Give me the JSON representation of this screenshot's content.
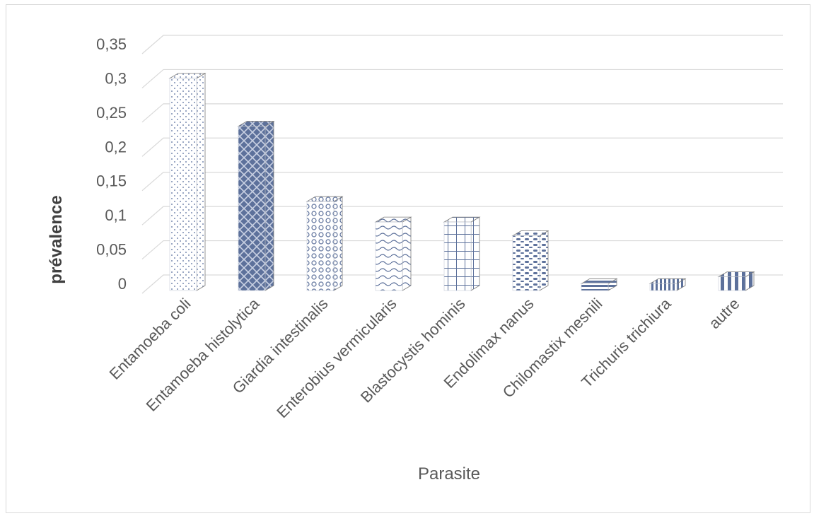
{
  "chart_data": {
    "type": "bar",
    "style": "3d-column",
    "xlabel": "Parasite",
    "ylabel": "prévalence",
    "categories": [
      "Entamoeba coli",
      "Entamoeba histolytica",
      "Giardia intestinalis",
      "Enterobius vermicularis",
      "Blastocystis hominis",
      "Endolimax nanus",
      "Chilomastix mesnili",
      "Trichuris trichiura",
      "autre"
    ],
    "values": [
      0.31,
      0.24,
      0.13,
      0.1,
      0.1,
      0.08,
      0.01,
      0.01,
      0.02
    ],
    "ylim": [
      0,
      0.35
    ],
    "yticks": [
      "0",
      "0,05",
      "0,1",
      "0,15",
      "0,2",
      "0,25",
      "0,3",
      "0,35"
    ],
    "grid": true,
    "legend": "none",
    "patterns": [
      "dots",
      "crosshatch",
      "circles",
      "waves",
      "grid",
      "dashes",
      "hstripes",
      "vstripes",
      "vstripes-wide"
    ],
    "colors": {
      "bar": "#5a6e98",
      "side": "#8a8a8a",
      "grid": "#d9d9d9",
      "text": "#595959"
    }
  }
}
